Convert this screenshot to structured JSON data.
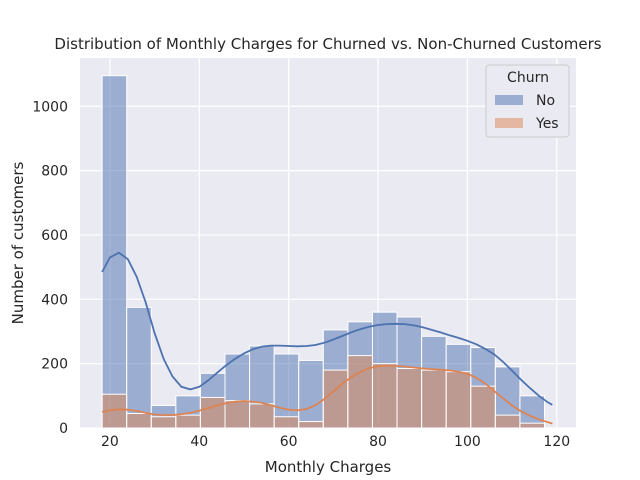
{
  "chart_data": {
    "type": "histogram",
    "title": "Distribution of Monthly Charges for Churned vs. Non-Churned Customers",
    "xlabel": "Monthly Charges",
    "ylabel": "Number of customers",
    "xlim": [
      13.3,
      124.3
    ],
    "ylim": [
      0,
      1150
    ],
    "xticks": [
      20,
      40,
      60,
      80,
      100,
      120
    ],
    "yticks": [
      0,
      200,
      400,
      600,
      800,
      1000
    ],
    "grid": true,
    "legend": {
      "title": "Churn",
      "position": "top-right"
    },
    "bins": [
      18.25,
      23.75,
      29.25,
      34.75,
      40.25,
      45.75,
      51.25,
      56.75,
      62.25,
      67.75,
      73.25,
      78.75,
      84.25,
      89.75,
      95.25,
      100.75,
      106.25,
      111.75,
      117.25
    ],
    "series": [
      {
        "name": "No",
        "color": "#4c72b0",
        "values": [
          1095,
          375,
          70,
          100,
          170,
          230,
          255,
          230,
          210,
          305,
          330,
          360,
          345,
          285,
          260,
          250,
          190,
          100
        ],
        "kde": [
          [
            18.25,
            485
          ],
          [
            20,
            530
          ],
          [
            22,
            545
          ],
          [
            24,
            525
          ],
          [
            26,
            470
          ],
          [
            28,
            390
          ],
          [
            30,
            295
          ],
          [
            32,
            215
          ],
          [
            34,
            160
          ],
          [
            36,
            128
          ],
          [
            38,
            120
          ],
          [
            40,
            128
          ],
          [
            42,
            148
          ],
          [
            44,
            172
          ],
          [
            46,
            195
          ],
          [
            48,
            215
          ],
          [
            50,
            232
          ],
          [
            52,
            245
          ],
          [
            54,
            253
          ],
          [
            56,
            256
          ],
          [
            58,
            256
          ],
          [
            60,
            255
          ],
          [
            62,
            254
          ],
          [
            64,
            255
          ],
          [
            66,
            258
          ],
          [
            68,
            265
          ],
          [
            70,
            275
          ],
          [
            72,
            286
          ],
          [
            74,
            297
          ],
          [
            76,
            307
          ],
          [
            78,
            315
          ],
          [
            80,
            320
          ],
          [
            82,
            323
          ],
          [
            84,
            324
          ],
          [
            86,
            323
          ],
          [
            88,
            319
          ],
          [
            90,
            313
          ],
          [
            92,
            305
          ],
          [
            94,
            297
          ],
          [
            96,
            288
          ],
          [
            98,
            280
          ],
          [
            100,
            271
          ],
          [
            102,
            260
          ],
          [
            104,
            246
          ],
          [
            106,
            229
          ],
          [
            108,
            205
          ],
          [
            110,
            178
          ],
          [
            112,
            150
          ],
          [
            114,
            124
          ],
          [
            116,
            100
          ],
          [
            118,
            80
          ],
          [
            119,
            72
          ]
        ]
      },
      {
        "name": "Yes",
        "color": "#dd8452",
        "values": [
          105,
          45,
          35,
          40,
          95,
          85,
          75,
          35,
          20,
          180,
          225,
          200,
          185,
          180,
          175,
          130,
          40,
          15
        ],
        "kde": [
          [
            18.25,
            50
          ],
          [
            20,
            55
          ],
          [
            22,
            58
          ],
          [
            24,
            57
          ],
          [
            26,
            53
          ],
          [
            28,
            47
          ],
          [
            30,
            42
          ],
          [
            32,
            40
          ],
          [
            34,
            40
          ],
          [
            36,
            43
          ],
          [
            38,
            47
          ],
          [
            40,
            54
          ],
          [
            42,
            62
          ],
          [
            44,
            70
          ],
          [
            46,
            77
          ],
          [
            48,
            82
          ],
          [
            50,
            84
          ],
          [
            52,
            82
          ],
          [
            54,
            78
          ],
          [
            56,
            71
          ],
          [
            58,
            63
          ],
          [
            60,
            57
          ],
          [
            62,
            55
          ],
          [
            64,
            59
          ],
          [
            66,
            71
          ],
          [
            68,
            90
          ],
          [
            70,
            114
          ],
          [
            72,
            138
          ],
          [
            74,
            158
          ],
          [
            76,
            174
          ],
          [
            78,
            186
          ],
          [
            80,
            192
          ],
          [
            82,
            194
          ],
          [
            84,
            193
          ],
          [
            86,
            191
          ],
          [
            88,
            188
          ],
          [
            90,
            185
          ],
          [
            92,
            183
          ],
          [
            94,
            181
          ],
          [
            96,
            179
          ],
          [
            98,
            175
          ],
          [
            100,
            168
          ],
          [
            102,
            156
          ],
          [
            104,
            138
          ],
          [
            106,
            115
          ],
          [
            108,
            92
          ],
          [
            110,
            70
          ],
          [
            112,
            52
          ],
          [
            114,
            38
          ],
          [
            116,
            27
          ],
          [
            118,
            18
          ],
          [
            119,
            14
          ]
        ]
      }
    ]
  }
}
